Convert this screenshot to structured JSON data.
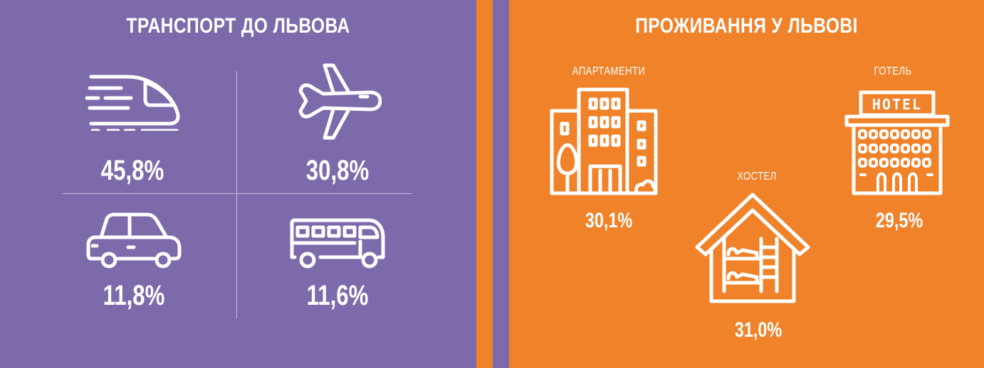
{
  "colors": {
    "left_bg": "#7d6aab",
    "right_bg": "#f08229",
    "foreground": "#ffffff"
  },
  "transport": {
    "title": "ТРАНСПОРТ ДО ЛЬВОВА",
    "items": [
      {
        "icon": "train-icon",
        "value": "45,8%"
      },
      {
        "icon": "airplane-icon",
        "value": "30,8%"
      },
      {
        "icon": "car-icon",
        "value": "11,8%"
      },
      {
        "icon": "bus-icon",
        "value": "11,6%"
      }
    ]
  },
  "accommodation": {
    "title": "ПРОЖИВАННЯ У ЛЬВОВІ",
    "items": [
      {
        "label": "АПАРТАМЕНТИ",
        "icon": "apartment-building-icon",
        "value": "30,1%"
      },
      {
        "label": "ХОСТЕЛ",
        "icon": "hostel-house-icon",
        "value": "31,0%"
      },
      {
        "label": "ГОТЕЛЬ",
        "icon": "hotel-building-icon",
        "value": "29,5%",
        "sign": "HOTEL"
      }
    ]
  }
}
